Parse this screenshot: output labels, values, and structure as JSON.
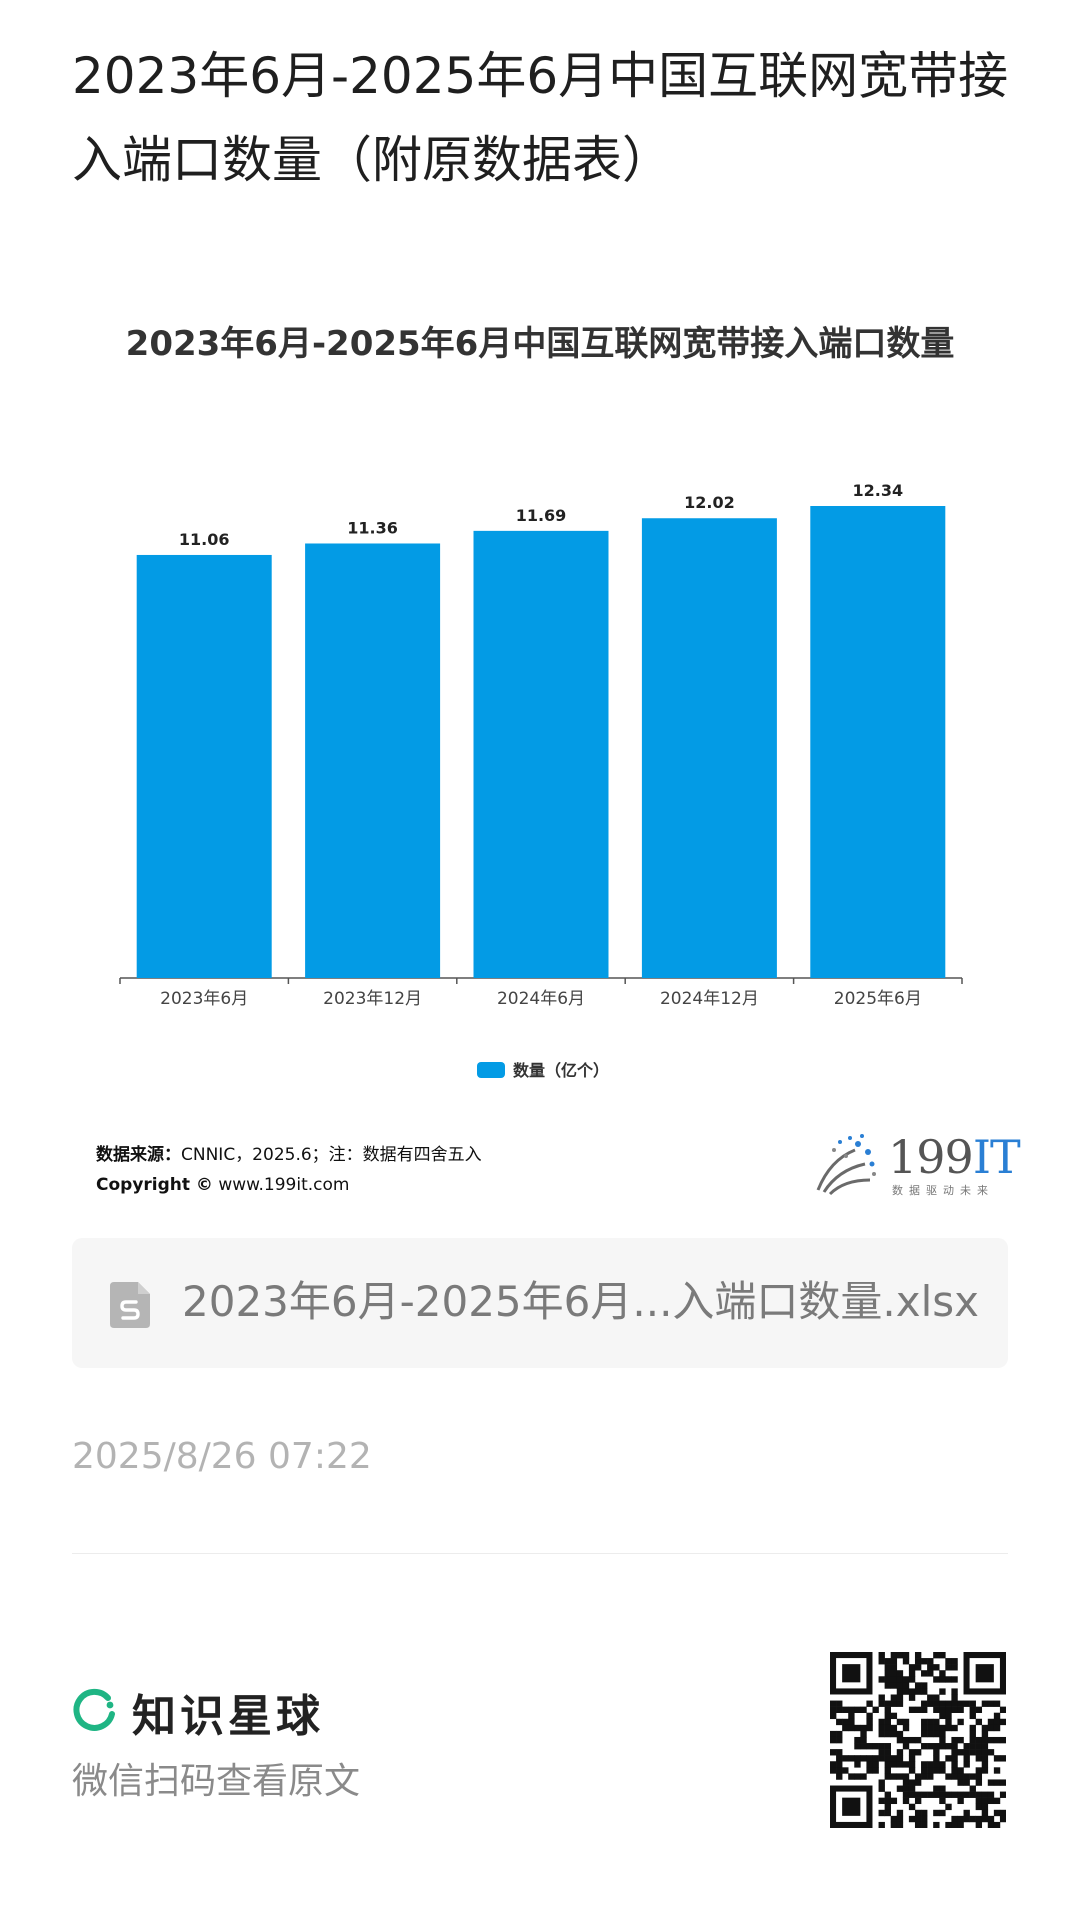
{
  "page": {
    "title": "2023年6月-2025年6月中国互联网宽带接入端口数量（附原数据表）"
  },
  "chart_data": {
    "type": "bar",
    "title": "2023年6月-2025年6月中国互联网宽带接入端口数量",
    "categories": [
      "2023年6月",
      "2023年12月",
      "2024年6月",
      "2024年12月",
      "2025年6月"
    ],
    "series": [
      {
        "name": "数量（亿个）",
        "values": [
          11.06,
          11.36,
          11.69,
          12.02,
          12.34
        ]
      }
    ],
    "ylim": [
      0,
      12.34
    ],
    "bar_color": "#039be5",
    "grid": false,
    "legend": "bottom-center"
  },
  "source": {
    "label": "数据来源：",
    "text": "CNNIC，2025.6；注：数据有四舍五入",
    "copyright_label": "Copyright ©",
    "copyright_url": "www.199it.com"
  },
  "logo_199": {
    "main": "199",
    "accent": "IT",
    "tagline": "数据驱动未来"
  },
  "file": {
    "name": "2023年6月-2025年6月...入端口数量.xlsx",
    "icon": "spreadsheet-file-icon"
  },
  "meta": {
    "timestamp": "2025/8/26 07:22"
  },
  "footer": {
    "brand_name": "知识星球",
    "brand_sub": "微信扫码查看原文",
    "brand_color": "#1fb584"
  }
}
